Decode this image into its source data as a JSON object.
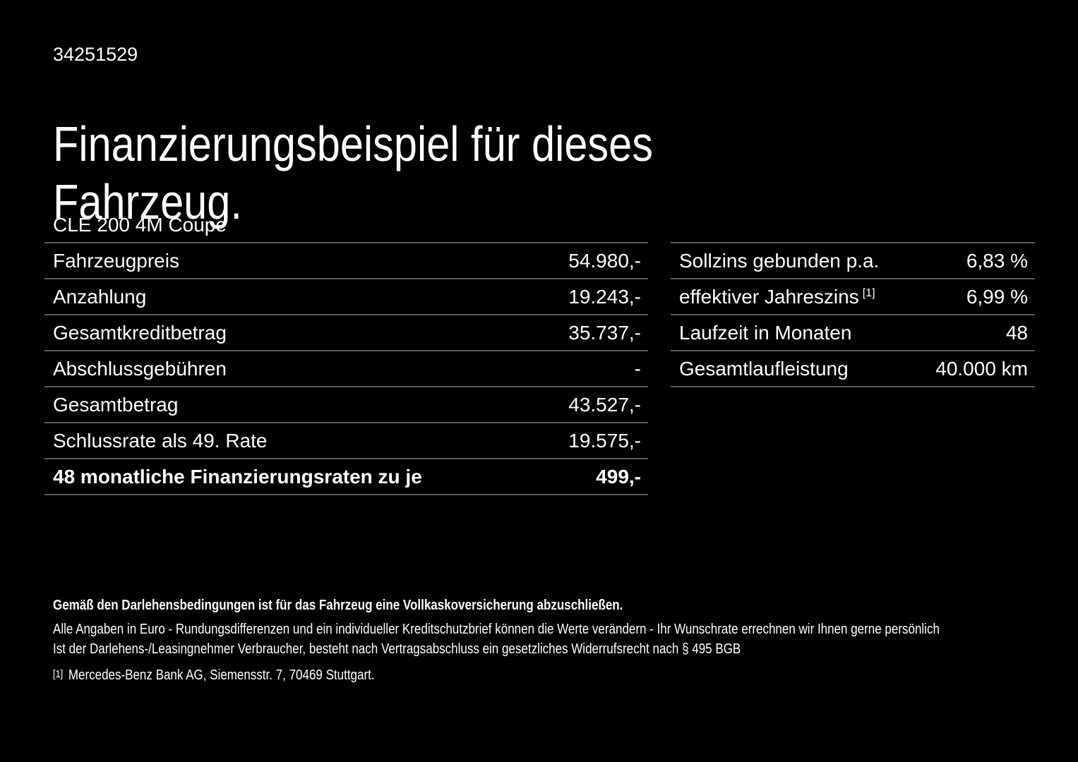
{
  "page": {
    "background": "#000000",
    "text_color": "#ffffff",
    "divider_color": "#5a5a5a"
  },
  "header": {
    "vehicle_id": "34251529",
    "title_line1": "Finanzierungsbeispiel für dieses",
    "title_line2": "Fahrzeug.",
    "vehicle_name": "CLE 200 4M Coupe"
  },
  "finance_table": {
    "rows": [
      {
        "label": "Fahrzeugpreis",
        "value": "54.980,-"
      },
      {
        "label": "Anzahlung",
        "value": "19.243,-"
      },
      {
        "label": "Gesamtkreditbetrag",
        "value": "35.737,-"
      },
      {
        "label": "Abschlussgebühren",
        "value": "-"
      },
      {
        "label": "Gesamtbetrag",
        "value": "43.527,-"
      },
      {
        "label": "Schlussrate als 49. Rate",
        "value": "19.575,-"
      },
      {
        "label": "48 monatliche Finanzierungsraten zu je",
        "value": "499,-"
      }
    ]
  },
  "conditions_table": {
    "rows": [
      {
        "label": "Sollzins gebunden p.a.",
        "value": "6,83 %"
      },
      {
        "label": "effektiver Jahreszins",
        "sup": "[1]",
        "value": "6,99 %"
      },
      {
        "label": "Laufzeit in Monaten",
        "value": "48"
      },
      {
        "label": "Gesamtlaufleistung",
        "value": "40.000 km"
      }
    ]
  },
  "footer": {
    "insurance_note": "Gemäß den Darlehensbedingungen ist für das Fahrzeug eine Vollkaskoversicherung abzuschließen.",
    "disclaimer_line1": "Alle Angaben in Euro - Rundungsdifferenzen und ein individueller Kreditschutzbrief können die Werte verändern - Ihr Wunschrate errechnen wir Ihnen gerne persönlich",
    "disclaimer_line2": "Ist der Darlehens-/Leasingnehmer Verbraucher, besteht nach Vertragsabschluss ein gesetzliches Widerrufsrecht nach § 495 BGB",
    "footnote_marker": "[1]",
    "footnote_text": "Mercedes-Benz Bank AG, Siemensstr. 7, 70469 Stuttgart."
  }
}
